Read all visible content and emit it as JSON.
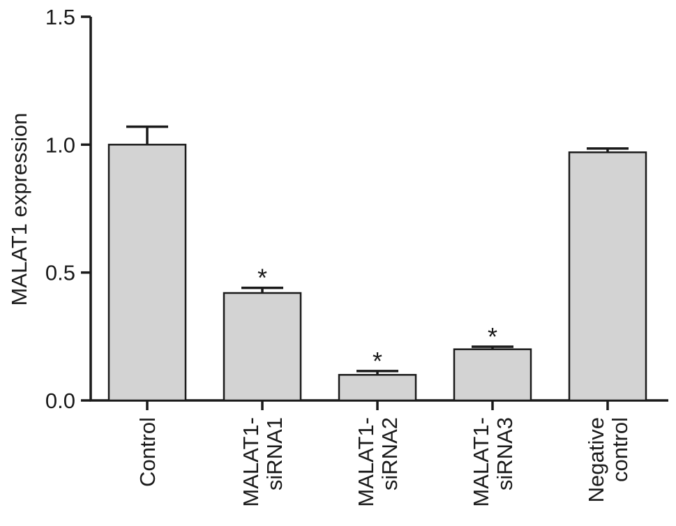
{
  "chart_data": {
    "type": "bar",
    "title": "",
    "xlabel": "",
    "ylabel": "MALAT1 expression",
    "ylim": [
      0,
      1.5
    ],
    "yticks": [
      "0.0",
      "0.5",
      "1.0",
      "1.5"
    ],
    "categories": [
      [
        "Control"
      ],
      [
        "MALAT1-",
        "siRNA1"
      ],
      [
        "MALAT1-",
        "siRNA2"
      ],
      [
        "MALAT1-",
        "siRNA3"
      ],
      [
        "Negative",
        "control"
      ]
    ],
    "values": [
      1.0,
      0.42,
      0.1,
      0.2,
      0.97
    ],
    "errors": [
      0.07,
      0.02,
      0.015,
      0.01,
      0.015
    ],
    "significance": [
      "",
      "*",
      "*",
      "*",
      ""
    ],
    "bar_color": "#d3d3d3",
    "grid": false,
    "legend": "none"
  }
}
